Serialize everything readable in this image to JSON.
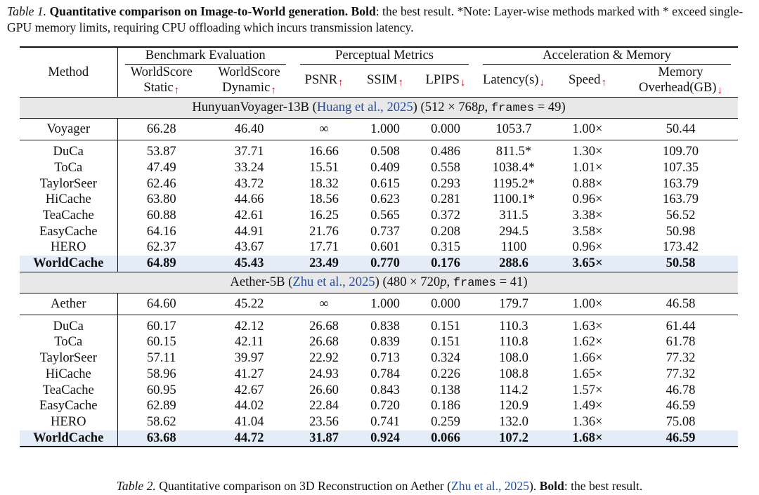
{
  "caption_top": {
    "label": "Table 1.",
    "title": "Quantitative comparison on Image-to-World generation.",
    "bold_word": "Bold",
    "text1": ": the best result. *Note: Layer-wise methods marked with * exceed single-GPU memory limits, requiring CPU offloading which incurs transmission latency."
  },
  "header": {
    "method": "Method",
    "groups": [
      "Benchmark Evaluation",
      "Perceptual Metrics",
      "Acceleration & Memory"
    ],
    "cols": [
      {
        "line1": "WorldScore",
        "line2": "Static",
        "dir": "up"
      },
      {
        "line1": "WorldScore",
        "line2": "Dynamic",
        "dir": "up"
      },
      {
        "line1": "",
        "line2": "PSNR",
        "dir": "up"
      },
      {
        "line1": "",
        "line2": "SSIM",
        "dir": "up"
      },
      {
        "line1": "",
        "line2": "LPIPS",
        "dir": "down"
      },
      {
        "line1": "",
        "line2": "Latency(s)",
        "dir": "down"
      },
      {
        "line1": "",
        "line2": "Speed",
        "dir": "up"
      },
      {
        "line1": "Memory",
        "line2": "Overhead(GB)",
        "dir": "down"
      }
    ],
    "arrow_up": "↑",
    "arrow_down": "↓"
  },
  "sections": [
    {
      "model": "HunyuanVoyager-13B",
      "cite": "Huang et al., 2025",
      "resolution": "(512 × 768",
      "res_unit": "p",
      "frames_key": "frames",
      "frames_val": " = 49)",
      "baseline": [
        "Voyager",
        "66.28",
        "46.40",
        "∞",
        "1.000",
        "0.000",
        "1053.7",
        "1.00×",
        "50.44"
      ],
      "rows": [
        [
          "DuCa",
          "53.87",
          "37.71",
          "16.66",
          "0.508",
          "0.486",
          "811.5*",
          "1.30×",
          "109.70"
        ],
        [
          "ToCa",
          "47.49",
          "33.24",
          "15.51",
          "0.409",
          "0.558",
          "1038.4*",
          "1.01×",
          "107.35"
        ],
        [
          "TaylorSeer",
          "62.46",
          "43.72",
          "18.32",
          "0.615",
          "0.293",
          "1195.2*",
          "0.88×",
          "163.79"
        ],
        [
          "HiCache",
          "63.80",
          "44.66",
          "18.56",
          "0.623",
          "0.281",
          "1100.1*",
          "0.96×",
          "163.79"
        ],
        [
          "TeaCache",
          "60.88",
          "42.61",
          "16.25",
          "0.565",
          "0.372",
          "311.5",
          "3.38×",
          "56.52"
        ],
        [
          "EasyCache",
          "64.16",
          "44.91",
          "21.76",
          "0.737",
          "0.208",
          "294.5",
          "3.58×",
          "50.98"
        ],
        [
          "HERO",
          "62.37",
          "43.67",
          "17.71",
          "0.601",
          "0.315",
          "1100",
          "0.96×",
          "173.42"
        ]
      ],
      "best": [
        "WorldCache",
        "64.89",
        "45.43",
        "23.49",
        "0.770",
        "0.176",
        "288.6",
        "3.65×",
        "50.58"
      ]
    },
    {
      "model": "Aether-5B",
      "cite": "Zhu et al., 2025",
      "resolution": "(480 × 720",
      "res_unit": "p",
      "frames_key": "frames",
      "frames_val": " = 41)",
      "baseline": [
        "Aether",
        "64.60",
        "45.22",
        "∞",
        "1.000",
        "0.000",
        "179.7",
        "1.00×",
        "46.58"
      ],
      "rows": [
        [
          "DuCa",
          "60.17",
          "42.12",
          "26.68",
          "0.838",
          "0.151",
          "110.3",
          "1.63×",
          "61.44"
        ],
        [
          "ToCa",
          "60.15",
          "42.11",
          "26.68",
          "0.839",
          "0.151",
          "110.8",
          "1.62×",
          "61.78"
        ],
        [
          "TaylorSeer",
          "57.11",
          "39.97",
          "22.92",
          "0.713",
          "0.324",
          "108.0",
          "1.66×",
          "77.32"
        ],
        [
          "HiCache",
          "58.96",
          "41.27",
          "24.93",
          "0.784",
          "0.226",
          "108.8",
          "1.65×",
          "77.32"
        ],
        [
          "TeaCache",
          "60.95",
          "42.67",
          "26.60",
          "0.843",
          "0.138",
          "114.2",
          "1.57×",
          "46.78"
        ],
        [
          "EasyCache",
          "62.89",
          "44.02",
          "22.84",
          "0.720",
          "0.186",
          "120.9",
          "1.49×",
          "46.59"
        ],
        [
          "HERO",
          "58.62",
          "41.04",
          "23.56",
          "0.741",
          "0.259",
          "132.0",
          "1.36×",
          "75.08"
        ]
      ],
      "best": [
        "WorldCache",
        "63.68",
        "44.72",
        "31.87",
        "0.924",
        "0.066",
        "107.2",
        "1.68×",
        "46.59"
      ]
    }
  ],
  "caption_bottom": {
    "label": "Table 2.",
    "text1": " Quantitative comparison on 3D Reconstruction on Aether (",
    "cite": "Zhu et al., 2025",
    "text2": "). ",
    "bold_word": "Bold",
    "text3": ": the best result."
  }
}
